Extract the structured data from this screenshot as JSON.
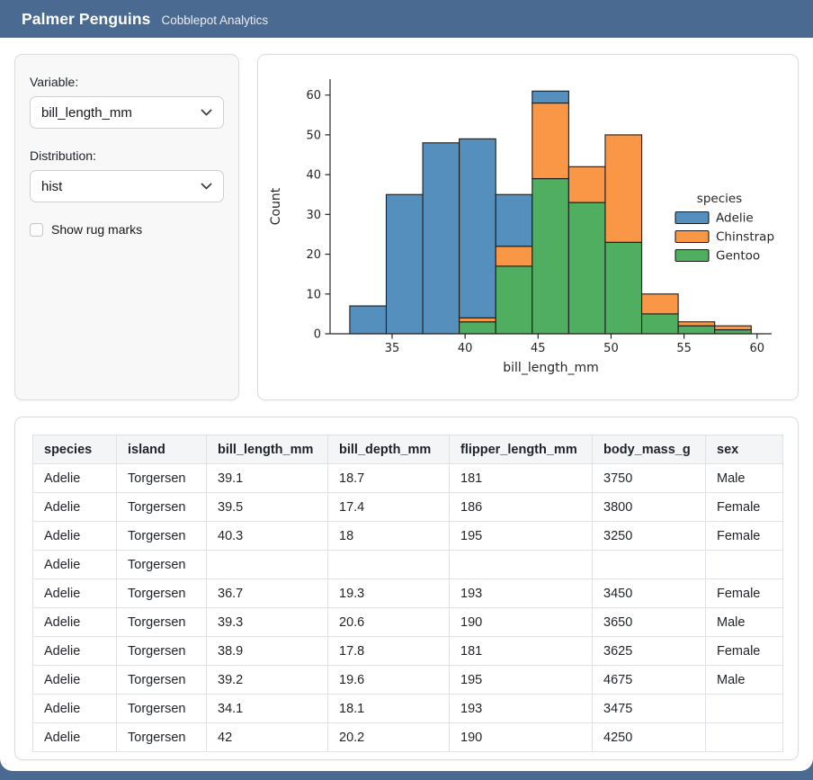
{
  "header": {
    "title": "Palmer Penguins",
    "subtitle": "Cobblepot Analytics"
  },
  "theme": {
    "brand_color": "#4a6a92",
    "sidebar_bg": "#f8f8f8",
    "card_border": "#dcdcdc",
    "table_border": "#dee2e6",
    "table_header_bg": "#f4f5f7"
  },
  "sidebar": {
    "variable_label": "Variable:",
    "variable_value": "bill_length_mm",
    "distribution_label": "Distribution:",
    "distribution_value": "hist",
    "rug_label": "Show rug marks",
    "rug_checked": false,
    "chevron_icon": "chevron-down"
  },
  "chart_data": {
    "type": "bar",
    "subtype": "stacked-histogram",
    "title": "",
    "xlabel": "bill_length_mm",
    "ylabel": "Count",
    "legend_title": "species",
    "legend_position": "right",
    "grid": false,
    "bin_edges": [
      32.1,
      34.6,
      37.1,
      39.6,
      42.1,
      44.6,
      47.1,
      49.6,
      52.1,
      54.6,
      57.1,
      59.6
    ],
    "series": [
      {
        "name": "Adelie",
        "color": "#548fbe",
        "values": [
          7,
          35,
          48,
          45,
          13,
          3,
          0,
          0,
          0,
          0,
          0
        ]
      },
      {
        "name": "Chinstrap",
        "color": "#fa9747",
        "values": [
          0,
          0,
          0,
          1,
          5,
          19,
          9,
          27,
          5,
          1,
          1
        ]
      },
      {
        "name": "Gentoo",
        "color": "#4fae5f",
        "values": [
          0,
          0,
          0,
          3,
          17,
          39,
          33,
          23,
          5,
          2,
          1
        ]
      }
    ],
    "stack_bottom_to_top": [
      "Gentoo",
      "Chinstrap",
      "Adelie"
    ],
    "bin_totals": [
      7,
      35,
      48,
      49,
      35,
      61,
      42,
      50,
      10,
      3,
      2
    ],
    "x_ticks": [
      35,
      40,
      45,
      50,
      55,
      60
    ],
    "y_ticks": [
      0,
      10,
      20,
      30,
      40,
      50,
      60
    ],
    "xlim": [
      30.75,
      61.0
    ],
    "ylim": [
      0,
      64
    ],
    "bar_edge_color": "#1c1c1c",
    "axis_color": "#262626"
  },
  "table": {
    "columns": [
      "species",
      "island",
      "bill_length_mm",
      "bill_depth_mm",
      "flipper_length_mm",
      "body_mass_g",
      "sex"
    ],
    "rows": [
      [
        "Adelie",
        "Torgersen",
        "39.1",
        "18.7",
        "181",
        "3750",
        "Male"
      ],
      [
        "Adelie",
        "Torgersen",
        "39.5",
        "17.4",
        "186",
        "3800",
        "Female"
      ],
      [
        "Adelie",
        "Torgersen",
        "40.3",
        "18",
        "195",
        "3250",
        "Female"
      ],
      [
        "Adelie",
        "Torgersen",
        "",
        "",
        "",
        "",
        ""
      ],
      [
        "Adelie",
        "Torgersen",
        "36.7",
        "19.3",
        "193",
        "3450",
        "Female"
      ],
      [
        "Adelie",
        "Torgersen",
        "39.3",
        "20.6",
        "190",
        "3650",
        "Male"
      ],
      [
        "Adelie",
        "Torgersen",
        "38.9",
        "17.8",
        "181",
        "3625",
        "Female"
      ],
      [
        "Adelie",
        "Torgersen",
        "39.2",
        "19.6",
        "195",
        "4675",
        "Male"
      ],
      [
        "Adelie",
        "Torgersen",
        "34.1",
        "18.1",
        "193",
        "3475",
        ""
      ],
      [
        "Adelie",
        "Torgersen",
        "42",
        "20.2",
        "190",
        "4250",
        ""
      ]
    ]
  }
}
